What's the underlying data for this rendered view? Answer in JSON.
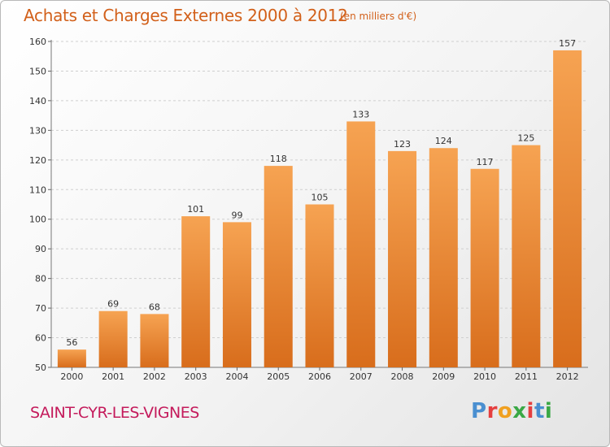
{
  "header": {
    "title": "Achats et Charges Externes 2000 à 2012",
    "subtitle": "(en milliers d'€)"
  },
  "footer": {
    "city": "SAINT-CYR-LES-VIGNES",
    "logo_text": "Proxiti"
  },
  "colors": {
    "title": "#d2601a",
    "city": "#c41a5b",
    "bar_light": "#f6a352",
    "bar_dark": "#d86d1c",
    "logo_letters": [
      "#4a8fd0",
      "#e53f3f",
      "#f0a020",
      "#3aa845",
      "#e53f3f",
      "#4a8fd0",
      "#3aa845"
    ]
  },
  "chart_data": {
    "type": "bar",
    "categories": [
      "2000",
      "2001",
      "2002",
      "2003",
      "2004",
      "2005",
      "2006",
      "2007",
      "2008",
      "2009",
      "2010",
      "2011",
      "2012"
    ],
    "values": [
      56,
      69,
      68,
      101,
      99,
      118,
      105,
      133,
      123,
      124,
      117,
      125,
      157
    ],
    "ylim": [
      50,
      160
    ],
    "yticks": [
      50,
      60,
      70,
      80,
      90,
      100,
      110,
      120,
      130,
      140,
      150,
      160
    ],
    "grid": true,
    "legend": "none"
  }
}
